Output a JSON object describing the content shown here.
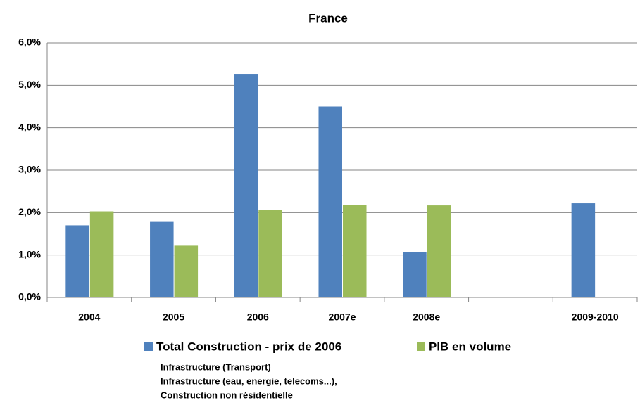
{
  "chart_data": {
    "type": "bar",
    "title": "France",
    "categories": [
      "2004",
      "2005",
      "2006",
      "2007e",
      "2008e",
      null,
      "2009-2010"
    ],
    "series": [
      {
        "name": "Total Construction - prix de 2006",
        "color": "#4f81bd",
        "values": [
          1.7,
          1.78,
          5.27,
          4.5,
          1.07,
          null,
          2.22
        ]
      },
      {
        "name": "PIB en volume",
        "color": "#9bbb59",
        "values": [
          2.03,
          1.22,
          2.07,
          2.18,
          2.17,
          null,
          null
        ]
      }
    ],
    "ylim": [
      0,
      6
    ],
    "yticks": [
      {
        "value": 0,
        "label": "0,0%"
      },
      {
        "value": 1,
        "label": "1,0%"
      },
      {
        "value": 2,
        "label": "2,0%"
      },
      {
        "value": 3,
        "label": "3,0%"
      },
      {
        "value": 4,
        "label": "4,0%"
      },
      {
        "value": 5,
        "label": "5,0%"
      },
      {
        "value": 6,
        "label": "6,0%"
      }
    ],
    "grid": true,
    "annotations": [
      "Infrastructure (Transport)",
      "Infrastructure (eau, energie, telecoms...),",
      "Construction non résidentielle"
    ]
  }
}
